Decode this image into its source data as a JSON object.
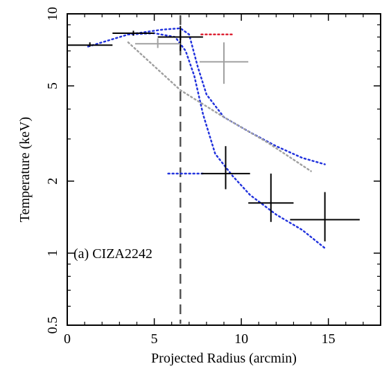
{
  "chart_data": {
    "type": "scatter",
    "panel_label": "(a) CIZA2242",
    "xlabel": "Projected Radius (arcmin)",
    "ylabel": "Temperature (keV)",
    "xlim": [
      0,
      18
    ],
    "ylim": [
      0.5,
      10
    ],
    "y_scale": "log",
    "x_ticks": [
      0,
      5,
      10,
      15
    ],
    "x_tick_labels": [
      "0",
      "5",
      "10",
      "15"
    ],
    "y_ticks": [
      0.5,
      1,
      2,
      5,
      10
    ],
    "y_tick_labels": [
      "0.5",
      "1",
      "2",
      "5",
      "10"
    ],
    "grid": false,
    "vertical_line": {
      "x": 6.5,
      "style": "dashed",
      "color": "#555555"
    },
    "series": [
      {
        "color": "#000000",
        "points": [
          {
            "x": 1.3,
            "xerr": [
              1.3,
              1.3
            ],
            "y": 7.4,
            "yerr": [
              7.3,
              7.6
            ]
          },
          {
            "x": 3.8,
            "xerr": [
              1.2,
              1.2
            ],
            "y": 8.3,
            "yerr": [
              8.1,
              8.5
            ]
          },
          {
            "x": 6.5,
            "xerr": [
              1.3,
              1.3
            ],
            "y": 8.0,
            "yerr": [
              7.0,
              8.9
            ]
          },
          {
            "x": 9.1,
            "xerr": [
              1.4,
              1.4
            ],
            "y": 2.15,
            "yerr": [
              1.85,
              2.8
            ]
          },
          {
            "x": 11.7,
            "xerr": [
              1.3,
              1.3
            ],
            "y": 1.62,
            "yerr": [
              1.35,
              2.15
            ]
          },
          {
            "x": 14.8,
            "xerr": [
              2.0,
              2.0
            ],
            "y": 1.38,
            "yerr": [
              1.12,
              1.8
            ]
          }
        ]
      },
      {
        "color": "#a0a0a0",
        "points": [
          {
            "x": 5.2,
            "xerr": [
              1.3,
              1.3
            ],
            "y": 7.5,
            "yerr": [
              7.2,
              7.9
            ]
          },
          {
            "x": 9.0,
            "xerr": [
              1.4,
              1.4
            ],
            "y": 6.3,
            "yerr": [
              5.1,
              7.6
            ]
          }
        ]
      }
    ],
    "model_curves": [
      {
        "color": "#2233dd",
        "style": "dotted",
        "points": [
          [
            1.2,
            7.3
          ],
          [
            3.5,
            8.2
          ],
          [
            5.5,
            8.6
          ],
          [
            6.5,
            8.7
          ],
          [
            7.0,
            8.2
          ],
          [
            7.5,
            6.0
          ],
          [
            8.0,
            4.6
          ],
          [
            9.0,
            3.7
          ],
          [
            10.5,
            3.2
          ],
          [
            12.0,
            2.8
          ],
          [
            13.5,
            2.5
          ],
          [
            14.8,
            2.35
          ]
        ]
      },
      {
        "color": "#2233dd",
        "style": "dotted",
        "points": [
          [
            3.5,
            8.2
          ],
          [
            5.0,
            8.3
          ],
          [
            6.2,
            8.0
          ],
          [
            6.8,
            7.0
          ],
          [
            7.3,
            5.5
          ],
          [
            7.8,
            3.8
          ],
          [
            8.5,
            2.6
          ],
          [
            9.5,
            2.1
          ],
          [
            10.5,
            1.75
          ],
          [
            12.0,
            1.45
          ],
          [
            13.5,
            1.25
          ],
          [
            14.8,
            1.05
          ]
        ]
      },
      {
        "color": "#2233dd",
        "style": "dotted",
        "points": [
          [
            5.8,
            2.15
          ],
          [
            7.8,
            2.15
          ]
        ]
      },
      {
        "color": "#a0a0a0",
        "style": "dotted",
        "points": [
          [
            3.5,
            7.6
          ],
          [
            6.5,
            4.8
          ],
          [
            9.0,
            3.7
          ],
          [
            11.5,
            2.9
          ],
          [
            14.0,
            2.2
          ]
        ]
      },
      {
        "color": "#dd2233",
        "style": "dotted",
        "points": [
          [
            7.7,
            8.2
          ],
          [
            9.5,
            8.2
          ]
        ]
      }
    ]
  }
}
